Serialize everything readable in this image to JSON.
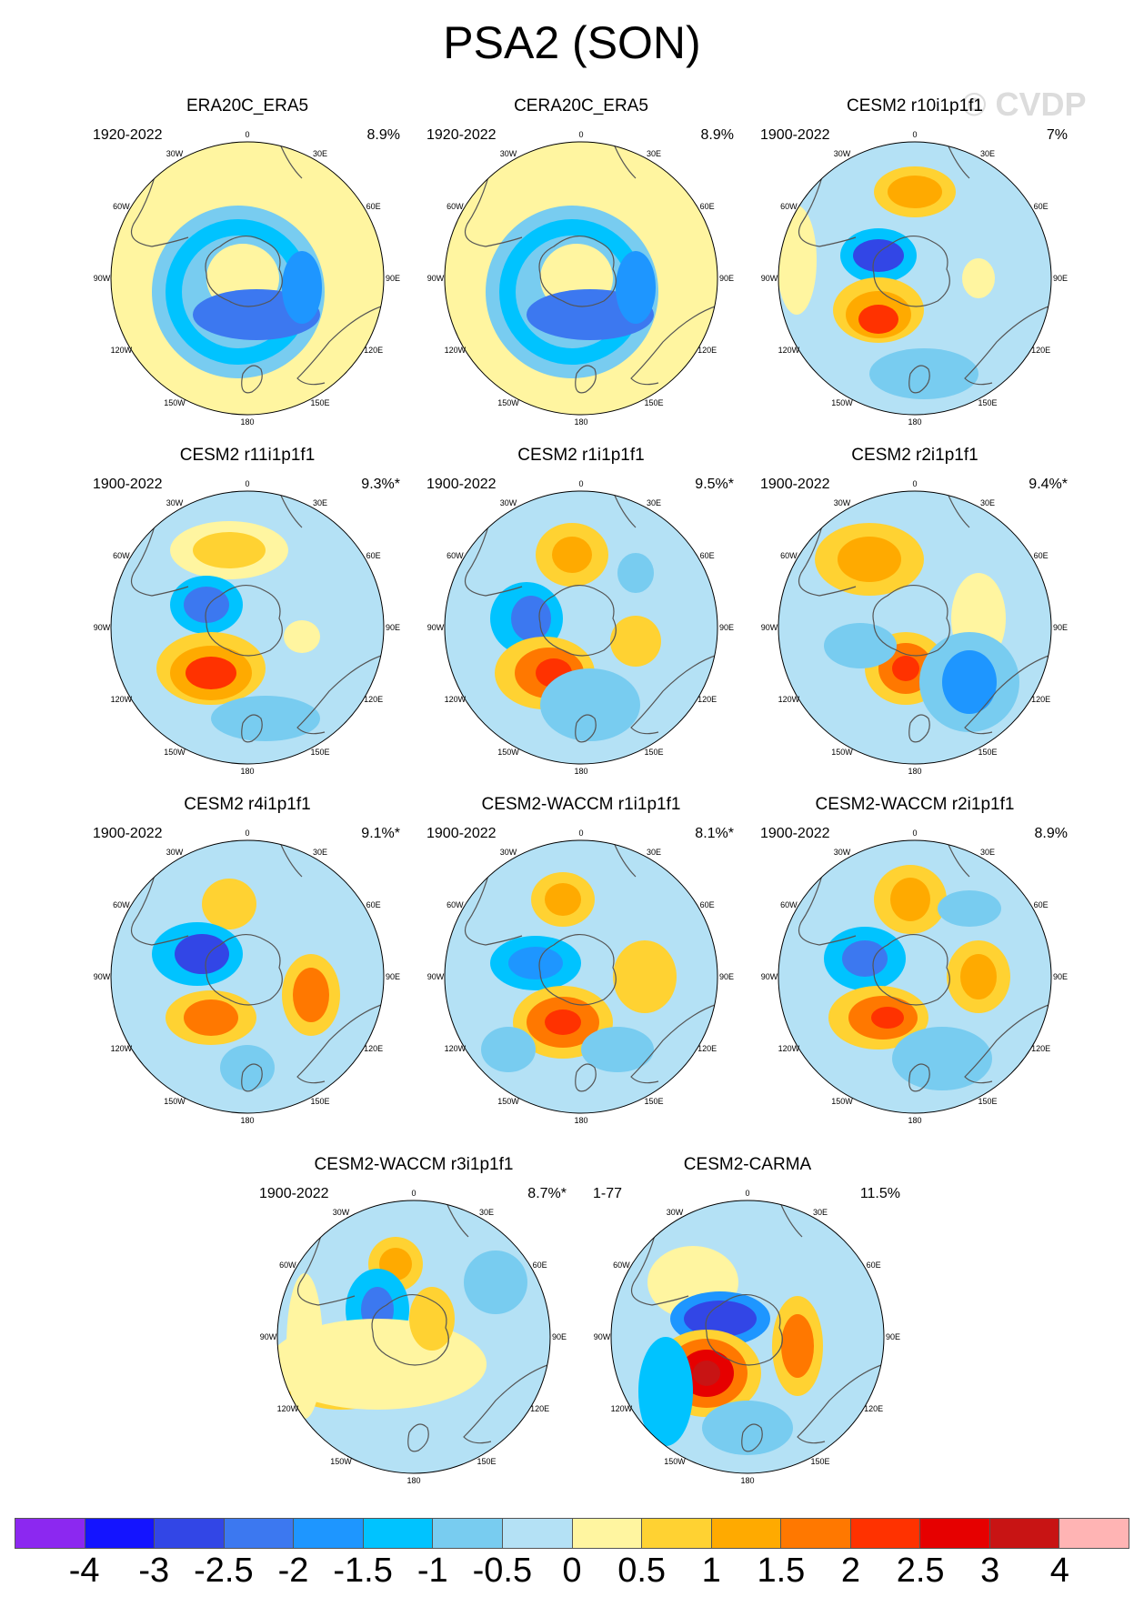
{
  "title": "PSA2 (SON)",
  "watermark": "© CVDP",
  "colorbar": {
    "colors": [
      "#8c28f0",
      "#1414ff",
      "#3246e6",
      "#3c78f0",
      "#1e96ff",
      "#00c3ff",
      "#78ccf0",
      "#b4e1f5",
      "#fff5a0",
      "#ffd232",
      "#ffaa00",
      "#ff7800",
      "#ff3200",
      "#e60000",
      "#c81414",
      "#ffb4b4"
    ],
    "labels": [
      "-4",
      "-3",
      "-2.5",
      "-2",
      "-1.5",
      "-1",
      "-0.5",
      "0",
      "0.5",
      "1",
      "1.5",
      "2",
      "2.5",
      "3",
      "4"
    ]
  },
  "panels": [
    {
      "title": "ERA20C_ERA5",
      "years": "1920-2022",
      "pct": "8.9%"
    },
    {
      "title": "CERA20C_ERA5",
      "years": "1920-2022",
      "pct": "8.9%"
    },
    {
      "title": "CESM2 r10i1p1f1",
      "years": "1900-2022",
      "pct": "7%"
    },
    {
      "title": "CESM2 r11i1p1f1",
      "years": "1900-2022",
      "pct": "9.3%*"
    },
    {
      "title": "CESM2 r1i1p1f1",
      "years": "1900-2022",
      "pct": "9.5%*"
    },
    {
      "title": "CESM2 r2i1p1f1",
      "years": "1900-2022",
      "pct": "9.4%*"
    },
    {
      "title": "CESM2 r4i1p1f1",
      "years": "1900-2022",
      "pct": "9.1%*"
    },
    {
      "title": "CESM2-WACCM r1i1p1f1",
      "years": "1900-2022",
      "pct": "8.1%*"
    },
    {
      "title": "CESM2-WACCM r2i1p1f1",
      "years": "1900-2022",
      "pct": "8.9%"
    },
    {
      "title": "CESM2-WACCM r3i1p1f1",
      "years": "1900-2022",
      "pct": "8.7%*"
    },
    {
      "title": "CESM2-CARMA",
      "years": "1-77",
      "pct": "11.5%"
    }
  ],
  "map_labels": [
    "0",
    "30E",
    "60E",
    "90E",
    "120E",
    "150E",
    "180",
    "150W",
    "120W",
    "90W",
    "60W",
    "30W"
  ]
}
